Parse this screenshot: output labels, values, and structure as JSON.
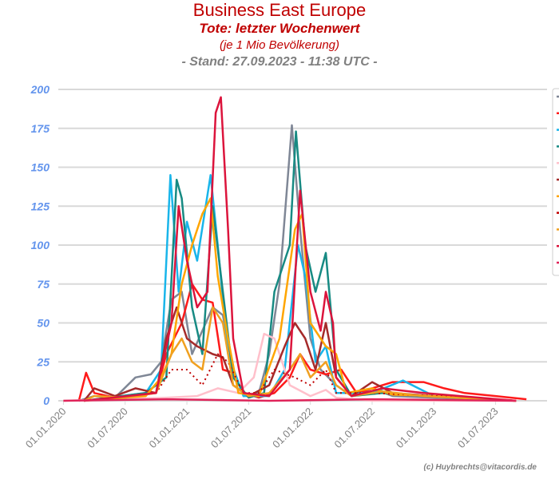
{
  "title": "Business East Europe",
  "subtitle": "Tote: letzter Wochenwert",
  "subtitle2": "(je 1 Mio Bevölkerung)",
  "stand": "- Stand: 27.09.2023 - 11:38 UTC -",
  "credit": "(c) Huybrechts@vitacordis.de",
  "chart_data": {
    "type": "line",
    "title": "Business East Europe",
    "xlabel": "",
    "ylabel": "",
    "x_unit": "months since 01.01.2020",
    "xlim": [
      -0.5,
      47
    ],
    "ylim": [
      0,
      200
    ],
    "yticks": [
      0,
      25,
      50,
      75,
      100,
      125,
      150,
      175,
      200
    ],
    "xticks": [
      {
        "m": 0,
        "label": "01.01.2020"
      },
      {
        "m": 6,
        "label": "01.07.2020"
      },
      {
        "m": 12,
        "label": "01.01.2021"
      },
      {
        "m": 18,
        "label": "01.07.2021"
      },
      {
        "m": 24,
        "label": "01.01.2022"
      },
      {
        "m": 30,
        "label": "01.07.2022"
      },
      {
        "m": 36,
        "label": "01.01.2023"
      },
      {
        "m": 42,
        "label": "01.07.2023"
      }
    ],
    "grid": true,
    "legend": "right",
    "series": [
      {
        "color": "#7f8796",
        "dash": false,
        "points": [
          [
            1.5,
            0
          ],
          [
            3,
            3
          ],
          [
            5,
            2
          ],
          [
            7,
            15
          ],
          [
            8.5,
            17
          ],
          [
            9.5,
            25
          ],
          [
            10.5,
            65
          ],
          [
            11.5,
            70
          ],
          [
            12.5,
            30
          ],
          [
            13.5,
            45
          ],
          [
            14.5,
            60
          ],
          [
            15.5,
            55
          ],
          [
            16.5,
            20
          ],
          [
            17.5,
            3
          ],
          [
            19,
            5
          ],
          [
            20,
            30
          ],
          [
            21,
            75
          ],
          [
            22.2,
            177
          ],
          [
            23,
            110
          ],
          [
            24,
            40
          ],
          [
            25,
            20
          ],
          [
            26.5,
            10
          ],
          [
            28,
            3
          ],
          [
            30,
            8
          ],
          [
            32,
            3
          ],
          [
            36,
            2
          ],
          [
            44,
            0
          ]
        ]
      },
      {
        "color": "#ff1a1a",
        "dash": false,
        "points": [
          [
            1.5,
            0
          ],
          [
            2.2,
            18
          ],
          [
            3,
            5
          ],
          [
            5,
            2
          ],
          [
            9,
            5
          ],
          [
            10,
            30
          ],
          [
            11.5,
            50
          ],
          [
            12.5,
            75
          ],
          [
            13.5,
            65
          ],
          [
            14.5,
            63
          ],
          [
            15.5,
            20
          ],
          [
            16.5,
            18
          ],
          [
            17.5,
            5
          ],
          [
            19,
            2
          ],
          [
            20.5,
            5
          ],
          [
            22,
            15
          ],
          [
            23,
            30
          ],
          [
            24,
            20
          ],
          [
            25.5,
            17
          ],
          [
            27,
            20
          ],
          [
            28.5,
            5
          ],
          [
            30,
            8
          ],
          [
            32,
            12
          ],
          [
            35,
            12
          ],
          [
            37,
            8
          ],
          [
            39,
            5
          ],
          [
            42,
            3
          ],
          [
            45,
            1
          ]
        ]
      },
      {
        "color": "#19b5ea",
        "dash": false,
        "points": [
          [
            2,
            0
          ],
          [
            8,
            5
          ],
          [
            9.5,
            20
          ],
          [
            10.4,
            145
          ],
          [
            11.2,
            70
          ],
          [
            12,
            115
          ],
          [
            13,
            90
          ],
          [
            14.3,
            145
          ],
          [
            15,
            100
          ],
          [
            16,
            30
          ],
          [
            17.5,
            3
          ],
          [
            20,
            3
          ],
          [
            21.5,
            20
          ],
          [
            22.8,
            100
          ],
          [
            23.5,
            80
          ],
          [
            24.5,
            25
          ],
          [
            25.5,
            35
          ],
          [
            26.5,
            5
          ],
          [
            30,
            5
          ],
          [
            33,
            13
          ],
          [
            36,
            3
          ],
          [
            44,
            0
          ]
        ]
      },
      {
        "color": "#178a83",
        "dash": false,
        "points": [
          [
            2,
            0
          ],
          [
            8,
            5
          ],
          [
            10,
            15
          ],
          [
            11,
            142
          ],
          [
            11.5,
            130
          ],
          [
            12.5,
            60
          ],
          [
            13.5,
            30
          ],
          [
            14.5,
            125
          ],
          [
            15.5,
            70
          ],
          [
            16.5,
            15
          ],
          [
            18,
            2
          ],
          [
            19.5,
            5
          ],
          [
            20.5,
            70
          ],
          [
            22,
            100
          ],
          [
            22.6,
            173
          ],
          [
            23.5,
            100
          ],
          [
            24.5,
            70
          ],
          [
            25.5,
            95
          ],
          [
            26.5,
            20
          ],
          [
            28,
            3
          ],
          [
            31,
            5
          ],
          [
            35,
            3
          ],
          [
            44,
            0
          ]
        ]
      },
      {
        "color": "#ffc0cb",
        "dash": false,
        "points": [
          [
            0,
            0
          ],
          [
            10,
            2
          ],
          [
            13,
            3
          ],
          [
            15,
            8
          ],
          [
            17,
            5
          ],
          [
            18.5,
            15
          ],
          [
            19.5,
            43
          ],
          [
            20.5,
            40
          ],
          [
            22,
            10
          ],
          [
            24,
            3
          ],
          [
            25.5,
            7
          ],
          [
            26.5,
            2
          ],
          [
            30,
            0
          ],
          [
            44,
            0
          ]
        ]
      },
      {
        "color": "#a52a2a",
        "dash": false,
        "points": [
          [
            2,
            0
          ],
          [
            3,
            8
          ],
          [
            5,
            3
          ],
          [
            7,
            8
          ],
          [
            9,
            5
          ],
          [
            10,
            40
          ],
          [
            11,
            60
          ],
          [
            12,
            40
          ],
          [
            13,
            35
          ],
          [
            14.5,
            30
          ],
          [
            15.5,
            28
          ],
          [
            16.5,
            10
          ],
          [
            18,
            3
          ],
          [
            20,
            10
          ],
          [
            21.5,
            35
          ],
          [
            22.5,
            50
          ],
          [
            23.5,
            40
          ],
          [
            24.5,
            20
          ],
          [
            25.5,
            50
          ],
          [
            26.5,
            15
          ],
          [
            28,
            3
          ],
          [
            30,
            12
          ],
          [
            32,
            5
          ],
          [
            36,
            3
          ],
          [
            44,
            0
          ]
        ]
      },
      {
        "color": "#ffa500",
        "dash": false,
        "points": [
          [
            2,
            0
          ],
          [
            8,
            3
          ],
          [
            9.5,
            15
          ],
          [
            10.5,
            30
          ],
          [
            11.5,
            75
          ],
          [
            12.5,
            100
          ],
          [
            13.5,
            120
          ],
          [
            14.3,
            130
          ],
          [
            15,
            80
          ],
          [
            16,
            40
          ],
          [
            17,
            5
          ],
          [
            19,
            3
          ],
          [
            21,
            40
          ],
          [
            22.5,
            110
          ],
          [
            23.2,
            120
          ],
          [
            24,
            50
          ],
          [
            25.5,
            35
          ],
          [
            26.5,
            30
          ],
          [
            27.5,
            5
          ],
          [
            30,
            8
          ],
          [
            32,
            4
          ],
          [
            36,
            3
          ],
          [
            44,
            0
          ]
        ]
      },
      {
        "color": "#c00000",
        "dash": true,
        "points": [
          [
            2,
            0
          ],
          [
            9,
            5
          ],
          [
            10.5,
            20
          ],
          [
            12,
            20
          ],
          [
            13.5,
            10
          ],
          [
            15,
            30
          ],
          [
            16,
            25
          ],
          [
            17.5,
            5
          ],
          [
            19,
            5
          ],
          [
            20.5,
            20
          ],
          [
            22.5,
            15
          ],
          [
            24,
            10
          ],
          [
            25.5,
            20
          ],
          [
            26.5,
            5
          ],
          [
            30,
            5
          ],
          [
            40,
            2
          ]
        ]
      },
      {
        "color": "#f0a020",
        "dash": false,
        "points": [
          [
            2,
            0
          ],
          [
            3,
            3
          ],
          [
            6,
            2
          ],
          [
            9,
            5
          ],
          [
            10.5,
            30
          ],
          [
            11.5,
            40
          ],
          [
            12.5,
            25
          ],
          [
            13.5,
            20
          ],
          [
            14.5,
            60
          ],
          [
            15.5,
            50
          ],
          [
            16.5,
            10
          ],
          [
            18,
            3
          ],
          [
            20,
            5
          ],
          [
            22,
            20
          ],
          [
            23,
            30
          ],
          [
            24,
            15
          ],
          [
            25.5,
            25
          ],
          [
            26.5,
            10
          ],
          [
            28,
            3
          ],
          [
            31,
            6
          ],
          [
            35,
            3
          ],
          [
            44,
            0
          ]
        ]
      },
      {
        "color": "#dc143c",
        "dash": false,
        "points": [
          [
            2,
            0
          ],
          [
            9,
            5
          ],
          [
            10.5,
            50
          ],
          [
            11.2,
            125
          ],
          [
            12,
            90
          ],
          [
            13,
            60
          ],
          [
            14,
            70
          ],
          [
            14.8,
            185
          ],
          [
            15.3,
            195
          ],
          [
            16,
            110
          ],
          [
            16.5,
            40
          ],
          [
            17.5,
            5
          ],
          [
            20,
            3
          ],
          [
            22,
            20
          ],
          [
            23,
            135
          ],
          [
            24,
            70
          ],
          [
            25,
            45
          ],
          [
            25.5,
            70
          ],
          [
            26.2,
            50
          ],
          [
            26.5,
            15
          ],
          [
            28,
            3
          ],
          [
            31,
            8
          ],
          [
            35,
            5
          ],
          [
            44,
            0
          ]
        ]
      },
      {
        "color": "#e0245a",
        "dash": false,
        "points": [
          [
            0,
            0
          ],
          [
            10,
            1
          ],
          [
            20,
            0
          ],
          [
            30,
            1
          ],
          [
            44,
            0
          ]
        ]
      }
    ]
  }
}
